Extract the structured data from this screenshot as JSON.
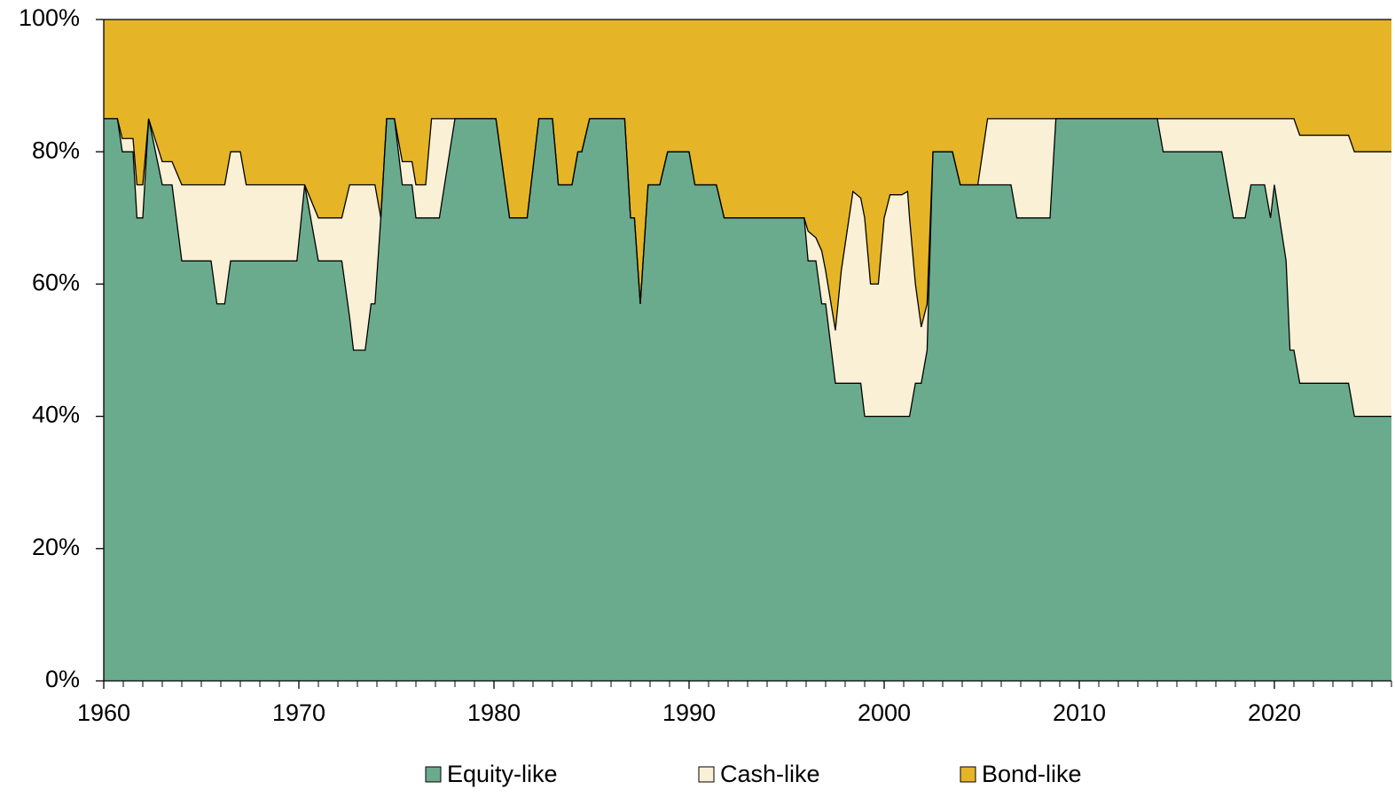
{
  "chart_data": {
    "type": "stacked-area",
    "x": [
      1960.0,
      1960.7,
      1960.95,
      1961.5,
      1961.7,
      1962.0,
      1962.3,
      1963.0,
      1963.5,
      1964.0,
      1965.5,
      1965.8,
      1966.2,
      1966.5,
      1967.0,
      1967.3,
      1969.9,
      1970.3,
      1971.0,
      1972.2,
      1972.6,
      1972.8,
      1973.4,
      1973.7,
      1973.9,
      1974.2,
      1974.5,
      1974.9,
      1975.3,
      1975.8,
      1976.0,
      1976.5,
      1976.8,
      1977.2,
      1978.0,
      1980.1,
      1980.8,
      1981.7,
      1982.1,
      1982.3,
      1983.0,
      1983.3,
      1984.0,
      1984.3,
      1984.5,
      1984.9,
      1986.7,
      1987.0,
      1987.2,
      1987.5,
      1987.9,
      1988.5,
      1988.9,
      1990.0,
      1990.3,
      1991.4,
      1991.8,
      1995.9,
      1996.1,
      1996.5,
      1996.8,
      1997.0,
      1997.5,
      1997.8,
      1998.2,
      1998.4,
      1998.8,
      1999.0,
      1999.3,
      1999.7,
      2000.0,
      2000.3,
      2000.9,
      2001.2,
      2001.3,
      2001.6,
      2001.9,
      2002.2,
      2002.5,
      2003.5,
      2003.9,
      2004.8,
      2005.3,
      2006.5,
      2006.8,
      2008.5,
      2008.8,
      2014.0,
      2014.3,
      2017.3,
      2017.9,
      2018.5,
      2018.8,
      2019.5,
      2019.8,
      2020.0,
      2020.6,
      2020.8,
      2021.0,
      2021.3,
      2023.8,
      2024.1,
      2026.0
    ],
    "series": [
      {
        "name": "Equity-like",
        "color": "#6aab8e",
        "values": [
          85,
          85,
          80,
          80,
          70,
          70,
          85,
          75,
          75,
          63.5,
          63.5,
          57,
          57,
          63.5,
          63.5,
          63.5,
          63.5,
          75,
          63.5,
          63.5,
          55,
          50,
          50,
          57,
          57,
          70,
          85,
          85,
          75,
          75,
          70,
          70,
          70,
          70,
          85,
          85,
          70,
          70,
          80,
          85,
          85,
          75,
          75,
          80,
          80,
          85,
          85,
          70,
          70,
          57,
          75,
          75,
          80,
          80,
          75,
          75,
          70,
          70,
          63.5,
          63.5,
          57,
          57,
          45,
          45,
          45,
          45,
          45,
          40,
          40,
          40,
          40,
          40,
          40,
          40,
          40,
          45,
          45,
          50,
          80,
          80,
          75,
          75,
          75,
          75,
          70,
          70,
          85,
          85,
          80,
          80,
          70,
          70,
          75,
          75,
          70,
          75,
          63.5,
          50,
          50,
          45,
          45,
          40,
          40
        ]
      },
      {
        "name": "Cash-like",
        "color": "#faf0d5",
        "values": [
          0,
          0,
          2,
          2,
          5,
          5,
          0,
          3.5,
          3.5,
          11.5,
          11.5,
          18,
          18,
          16.5,
          16.5,
          11.5,
          11.5,
          0,
          6.5,
          6.5,
          20,
          25,
          25,
          18,
          18,
          0,
          0,
          0,
          3.5,
          3.5,
          5,
          5,
          15,
          15,
          0,
          0,
          0,
          0,
          0,
          0,
          0,
          0,
          0,
          0,
          0,
          0,
          0,
          0,
          0,
          0,
          0,
          0,
          0,
          0,
          0,
          0,
          0,
          0,
          4.5,
          3.5,
          8,
          5,
          8,
          17,
          25,
          29,
          28,
          30,
          20,
          20,
          30,
          33.5,
          33.5,
          34,
          30,
          15,
          8.5,
          7,
          0,
          0,
          0,
          0,
          10,
          10,
          15,
          15,
          0,
          0,
          5,
          5,
          15,
          15,
          10,
          10,
          15,
          10,
          21.5,
          35,
          35,
          37.5,
          37.5,
          40,
          40
        ]
      },
      {
        "name": "Bond-like",
        "color": "#e5b527",
        "values": [
          15,
          15,
          18,
          18,
          25,
          25,
          15,
          21.5,
          21.5,
          25,
          25,
          25,
          25,
          20,
          20,
          25,
          25,
          25,
          30,
          30,
          25,
          25,
          25,
          25,
          25,
          30,
          15,
          15,
          21.5,
          21.5,
          25,
          25,
          15,
          15,
          15,
          15,
          30,
          30,
          20,
          15,
          15,
          25,
          25,
          20,
          20,
          15,
          15,
          30,
          30,
          43,
          25,
          25,
          20,
          20,
          25,
          25,
          30,
          30,
          32,
          33,
          35,
          38,
          47,
          38,
          30,
          26,
          27,
          30,
          40,
          40,
          30,
          26.5,
          26.5,
          26,
          30,
          40,
          46.5,
          43,
          20,
          20,
          25,
          25,
          15,
          15,
          15,
          15,
          15,
          15,
          15,
          15,
          15,
          15,
          15,
          15,
          15,
          15,
          15,
          15,
          15,
          17.5,
          17.5,
          20,
          20
        ]
      }
    ],
    "xlim": [
      1960,
      2026
    ],
    "xticks": [
      1960,
      1970,
      1980,
      1990,
      2000,
      2010,
      2020
    ],
    "ylim": [
      0,
      100
    ],
    "yticks": [
      {
        "value": 0,
        "label": "0%"
      },
      {
        "value": 20,
        "label": "20%"
      },
      {
        "value": 40,
        "label": "40%"
      },
      {
        "value": 60,
        "label": "60%"
      },
      {
        "value": 80,
        "label": "80%"
      },
      {
        "value": 100,
        "label": "100%"
      }
    ],
    "legend": "bottom"
  }
}
